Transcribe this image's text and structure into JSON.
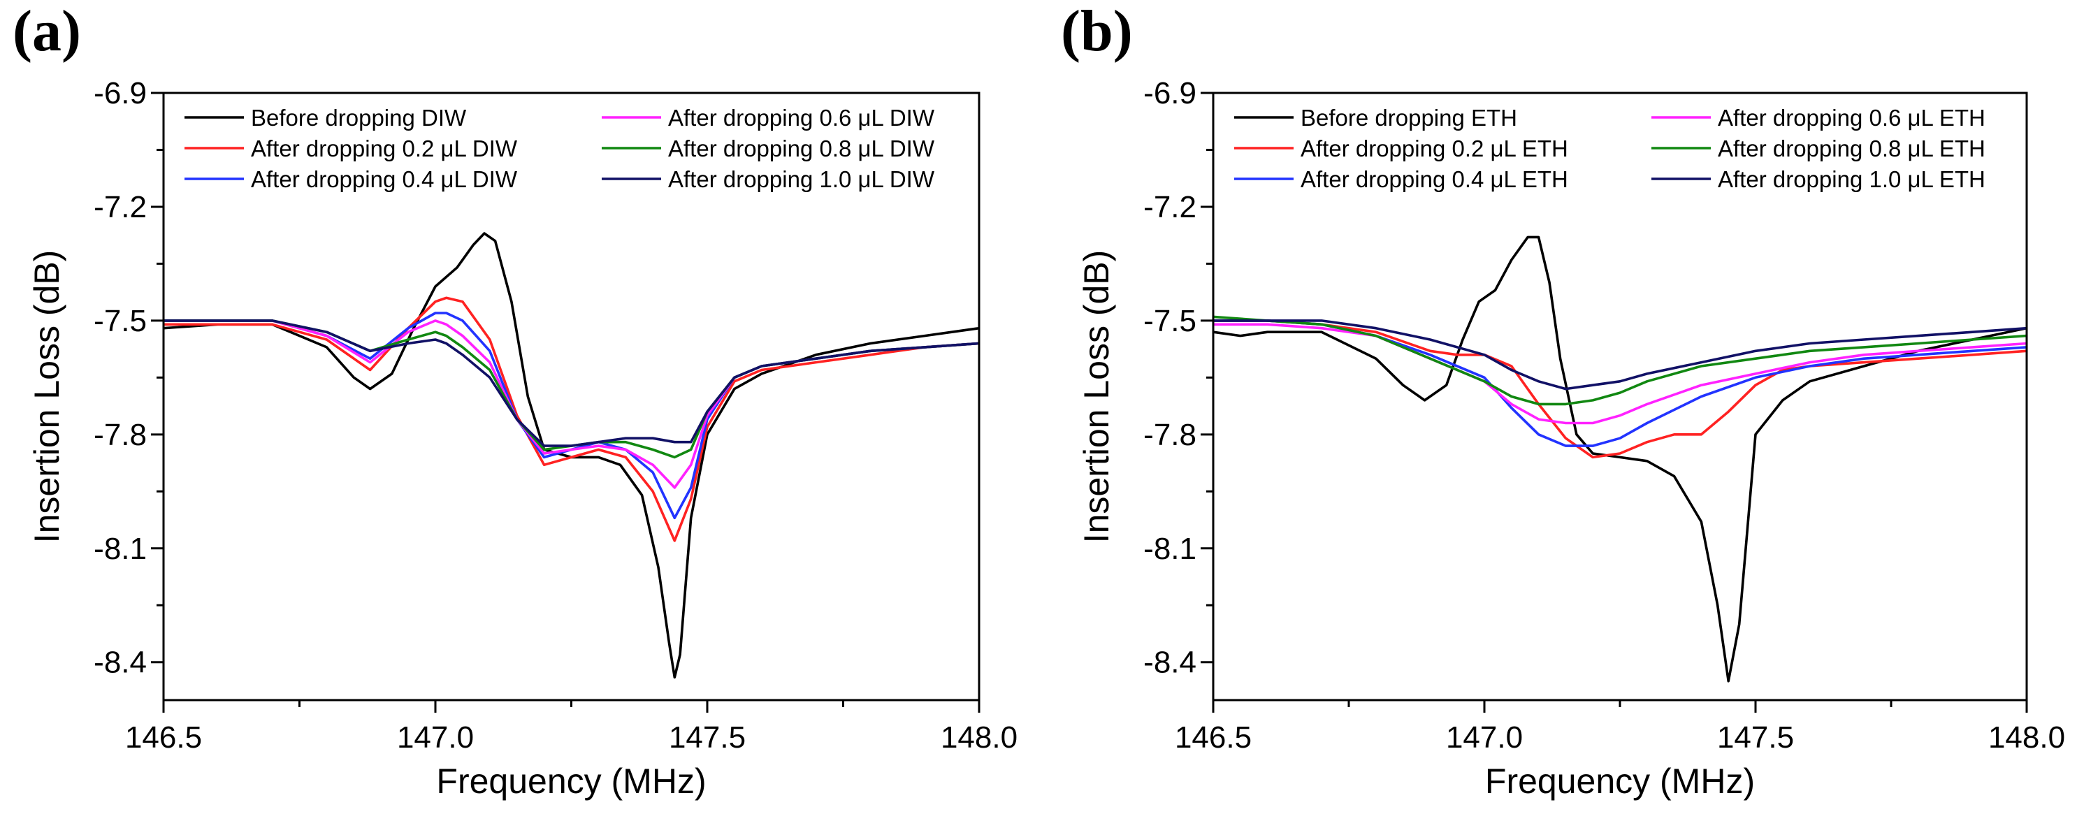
{
  "chart_data": [
    {
      "type": "line",
      "panel_label": "(a)",
      "xlabel": "Frequency (MHz)",
      "ylabel": "Insertion Loss (dB)",
      "xlim": [
        146.5,
        148.0
      ],
      "ylim": [
        -8.5,
        -6.9
      ],
      "xticks": [
        146.5,
        147.0,
        147.5,
        148.0
      ],
      "xtick_labels": [
        "146.5",
        "147.0",
        "147.5",
        "148.0"
      ],
      "yticks": [
        -6.9,
        -7.2,
        -7.5,
        -7.8,
        -8.1,
        -8.4
      ],
      "ytick_labels": [
        "-6.9",
        "-7.2",
        "-7.5",
        "-7.8",
        "-8.1",
        "-8.4"
      ],
      "legend_position": "top",
      "series": [
        {
          "name": "Before dropping DIW",
          "color": "#000000",
          "x": [
            146.5,
            146.6,
            146.7,
            146.8,
            146.85,
            146.88,
            146.92,
            146.96,
            147.0,
            147.04,
            147.07,
            147.09,
            147.11,
            147.14,
            147.17,
            147.2,
            147.25,
            147.3,
            147.34,
            147.38,
            147.41,
            147.43,
            147.44,
            147.45,
            147.47,
            147.5,
            147.55,
            147.6,
            147.7,
            147.8,
            147.9,
            148.0
          ],
          "y": [
            -7.52,
            -7.51,
            -7.51,
            -7.57,
            -7.65,
            -7.68,
            -7.64,
            -7.52,
            -7.41,
            -7.36,
            -7.3,
            -7.27,
            -7.29,
            -7.45,
            -7.7,
            -7.84,
            -7.86,
            -7.86,
            -7.88,
            -7.96,
            -8.15,
            -8.35,
            -8.44,
            -8.38,
            -8.02,
            -7.8,
            -7.68,
            -7.64,
            -7.59,
            -7.56,
            -7.54,
            -7.52
          ]
        },
        {
          "name": "After dropping 0.2 μL DIW",
          "color": "#ff2222",
          "x": [
            146.5,
            146.6,
            146.7,
            146.8,
            146.88,
            146.95,
            147.0,
            147.02,
            147.05,
            147.1,
            147.15,
            147.2,
            147.25,
            147.3,
            147.35,
            147.4,
            147.44,
            147.47,
            147.5,
            147.55,
            147.6,
            147.7,
            147.8,
            147.9,
            148.0
          ],
          "y": [
            -7.51,
            -7.51,
            -7.51,
            -7.55,
            -7.63,
            -7.52,
            -7.45,
            -7.44,
            -7.45,
            -7.55,
            -7.75,
            -7.88,
            -7.86,
            -7.84,
            -7.86,
            -7.95,
            -8.08,
            -7.97,
            -7.78,
            -7.66,
            -7.63,
            -7.61,
            -7.59,
            -7.57,
            -7.56
          ]
        },
        {
          "name": "After dropping 0.4 μL DIW",
          "color": "#2233ff",
          "x": [
            146.5,
            146.6,
            146.7,
            146.8,
            146.88,
            146.95,
            147.0,
            147.02,
            147.05,
            147.1,
            147.15,
            147.2,
            147.25,
            147.3,
            147.35,
            147.4,
            147.44,
            147.47,
            147.5,
            147.55,
            147.6,
            147.7,
            147.8,
            147.9,
            148.0
          ],
          "y": [
            -7.5,
            -7.5,
            -7.5,
            -7.54,
            -7.6,
            -7.52,
            -7.48,
            -7.48,
            -7.5,
            -7.58,
            -7.76,
            -7.86,
            -7.84,
            -7.82,
            -7.84,
            -7.9,
            -8.02,
            -7.94,
            -7.76,
            -7.65,
            -7.62,
            -7.6,
            -7.58,
            -7.57,
            -7.56
          ]
        },
        {
          "name": "After dropping 0.6 μL DIW",
          "color": "#ff22ff",
          "x": [
            146.5,
            146.6,
            146.7,
            146.8,
            146.88,
            146.95,
            147.0,
            147.02,
            147.05,
            147.1,
            147.15,
            147.2,
            147.25,
            147.3,
            147.35,
            147.4,
            147.44,
            147.47,
            147.5,
            147.55,
            147.6,
            147.7,
            147.8,
            147.9,
            148.0
          ],
          "y": [
            -7.5,
            -7.5,
            -7.5,
            -7.54,
            -7.61,
            -7.53,
            -7.5,
            -7.51,
            -7.54,
            -7.61,
            -7.76,
            -7.85,
            -7.84,
            -7.83,
            -7.84,
            -7.88,
            -7.94,
            -7.88,
            -7.75,
            -7.65,
            -7.62,
            -7.6,
            -7.58,
            -7.57,
            -7.56
          ]
        },
        {
          "name": "After dropping 0.8 μL DIW",
          "color": "#118811",
          "x": [
            146.5,
            146.6,
            146.7,
            146.8,
            146.88,
            146.95,
            147.0,
            147.02,
            147.05,
            147.1,
            147.15,
            147.2,
            147.25,
            147.3,
            147.35,
            147.4,
            147.44,
            147.47,
            147.5,
            147.55,
            147.6,
            147.7,
            147.8,
            147.9,
            148.0
          ],
          "y": [
            -7.5,
            -7.5,
            -7.5,
            -7.53,
            -7.58,
            -7.55,
            -7.53,
            -7.54,
            -7.57,
            -7.63,
            -7.76,
            -7.84,
            -7.83,
            -7.82,
            -7.82,
            -7.84,
            -7.86,
            -7.84,
            -7.74,
            -7.65,
            -7.62,
            -7.6,
            -7.58,
            -7.57,
            -7.56
          ]
        },
        {
          "name": "After dropping 1.0 μL DIW",
          "color": "#111166",
          "x": [
            146.5,
            146.6,
            146.7,
            146.8,
            146.88,
            146.95,
            147.0,
            147.02,
            147.05,
            147.1,
            147.15,
            147.2,
            147.25,
            147.3,
            147.35,
            147.4,
            147.44,
            147.47,
            147.5,
            147.55,
            147.6,
            147.7,
            147.8,
            147.9,
            148.0
          ],
          "y": [
            -7.5,
            -7.5,
            -7.5,
            -7.53,
            -7.58,
            -7.56,
            -7.55,
            -7.56,
            -7.59,
            -7.65,
            -7.76,
            -7.83,
            -7.83,
            -7.82,
            -7.81,
            -7.81,
            -7.82,
            -7.82,
            -7.74,
            -7.65,
            -7.62,
            -7.6,
            -7.58,
            -7.57,
            -7.56
          ]
        }
      ]
    },
    {
      "type": "line",
      "panel_label": "(b)",
      "xlabel": "Frequency (MHz)",
      "ylabel": "Insertion Loss (dB)",
      "xlim": [
        146.5,
        148.0
      ],
      "ylim": [
        -8.5,
        -6.9
      ],
      "xticks": [
        146.5,
        147.0,
        147.5,
        148.0
      ],
      "xtick_labels": [
        "146.5",
        "147.0",
        "147.5",
        "148.0"
      ],
      "yticks": [
        -6.9,
        -7.2,
        -7.5,
        -7.8,
        -8.1,
        -8.4
      ],
      "ytick_labels": [
        "-6.9",
        "-7.2",
        "-7.5",
        "-7.8",
        "-8.1",
        "-8.4"
      ],
      "legend_position": "top",
      "series": [
        {
          "name": "Before dropping ETH",
          "color": "#000000",
          "x": [
            146.5,
            146.55,
            146.6,
            146.7,
            146.8,
            146.85,
            146.89,
            146.93,
            146.96,
            146.99,
            147.02,
            147.05,
            147.08,
            147.1,
            147.12,
            147.14,
            147.17,
            147.2,
            147.25,
            147.3,
            147.35,
            147.4,
            147.43,
            147.45,
            147.47,
            147.5,
            147.55,
            147.6,
            147.7,
            147.8,
            147.9,
            148.0
          ],
          "y": [
            -7.53,
            -7.54,
            -7.53,
            -7.53,
            -7.6,
            -7.67,
            -7.71,
            -7.67,
            -7.55,
            -7.45,
            -7.42,
            -7.34,
            -7.28,
            -7.28,
            -7.4,
            -7.6,
            -7.8,
            -7.85,
            -7.86,
            -7.87,
            -7.91,
            -8.03,
            -8.25,
            -8.45,
            -8.3,
            -7.8,
            -7.71,
            -7.66,
            -7.62,
            -7.58,
            -7.55,
            -7.52
          ]
        },
        {
          "name": "After dropping 0.2 μL ETH",
          "color": "#ff2222",
          "x": [
            146.5,
            146.6,
            146.7,
            146.8,
            146.9,
            146.95,
            147.0,
            147.05,
            147.1,
            147.15,
            147.2,
            147.25,
            147.3,
            147.35,
            147.4,
            147.45,
            147.5,
            147.55,
            147.6,
            147.7,
            147.8,
            147.9,
            148.0
          ],
          "y": [
            -7.5,
            -7.5,
            -7.51,
            -7.53,
            -7.58,
            -7.59,
            -7.59,
            -7.62,
            -7.72,
            -7.81,
            -7.86,
            -7.85,
            -7.82,
            -7.8,
            -7.8,
            -7.74,
            -7.67,
            -7.63,
            -7.62,
            -7.61,
            -7.6,
            -7.59,
            -7.58
          ]
        },
        {
          "name": "After dropping 0.4 μL ETH",
          "color": "#2233ff",
          "x": [
            146.5,
            146.6,
            146.7,
            146.8,
            146.9,
            147.0,
            147.05,
            147.1,
            147.15,
            147.2,
            147.25,
            147.3,
            147.4,
            147.5,
            147.6,
            147.7,
            147.8,
            147.9,
            148.0
          ],
          "y": [
            -7.5,
            -7.5,
            -7.51,
            -7.54,
            -7.59,
            -7.65,
            -7.73,
            -7.8,
            -7.83,
            -7.83,
            -7.81,
            -7.77,
            -7.7,
            -7.65,
            -7.62,
            -7.6,
            -7.59,
            -7.58,
            -7.57
          ]
        },
        {
          "name": "After dropping 0.6 μL ETH",
          "color": "#ff22ff",
          "x": [
            146.5,
            146.6,
            146.7,
            146.8,
            146.9,
            147.0,
            147.05,
            147.1,
            147.15,
            147.2,
            147.25,
            147.3,
            147.4,
            147.5,
            147.6,
            147.7,
            147.8,
            147.9,
            148.0
          ],
          "y": [
            -7.51,
            -7.51,
            -7.52,
            -7.54,
            -7.6,
            -7.66,
            -7.72,
            -7.76,
            -7.77,
            -7.77,
            -7.75,
            -7.72,
            -7.67,
            -7.64,
            -7.61,
            -7.59,
            -7.58,
            -7.57,
            -7.56
          ]
        },
        {
          "name": "After dropping 0.8 μL ETH",
          "color": "#118811",
          "x": [
            146.5,
            146.6,
            146.7,
            146.8,
            146.9,
            147.0,
            147.05,
            147.1,
            147.15,
            147.2,
            147.25,
            147.3,
            147.4,
            147.5,
            147.6,
            147.7,
            147.8,
            147.9,
            148.0
          ],
          "y": [
            -7.49,
            -7.5,
            -7.51,
            -7.54,
            -7.6,
            -7.66,
            -7.7,
            -7.72,
            -7.72,
            -7.71,
            -7.69,
            -7.66,
            -7.62,
            -7.6,
            -7.58,
            -7.57,
            -7.56,
            -7.55,
            -7.54
          ]
        },
        {
          "name": "After dropping 1.0 μL ETH",
          "color": "#111166",
          "x": [
            146.5,
            146.6,
            146.7,
            146.8,
            146.9,
            147.0,
            147.05,
            147.1,
            147.15,
            147.2,
            147.25,
            147.3,
            147.4,
            147.5,
            147.6,
            147.7,
            147.8,
            147.9,
            148.0
          ],
          "y": [
            -7.5,
            -7.5,
            -7.5,
            -7.52,
            -7.55,
            -7.59,
            -7.63,
            -7.66,
            -7.68,
            -7.67,
            -7.66,
            -7.64,
            -7.61,
            -7.58,
            -7.56,
            -7.55,
            -7.54,
            -7.53,
            -7.52
          ]
        }
      ]
    }
  ]
}
